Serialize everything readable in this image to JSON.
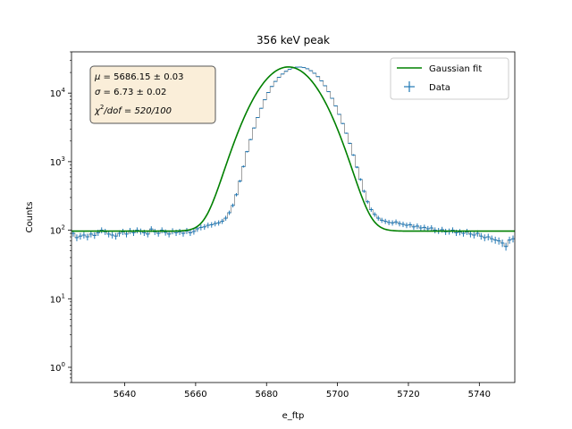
{
  "chart_data": {
    "type": "scatter",
    "title": "356 keV peak",
    "xlabel": "e_ftp",
    "ylabel": "Counts",
    "xlim": [
      5625,
      5750
    ],
    "ylim": [
      0.6,
      40000
    ],
    "yscale": "log",
    "xticks": [
      "5640",
      "5660",
      "5680",
      "5700",
      "5720",
      "5740"
    ],
    "yticks": [
      "10",
      "10",
      "10",
      "10",
      "10"
    ],
    "ytick_exponents": [
      "0",
      "1",
      "2",
      "3",
      "4"
    ],
    "grid": false,
    "legend_position": "top-right",
    "annotation": {
      "mu_symbol": "μ",
      "mu_text": " = 5686.15 ± 0.03",
      "sigma_symbol": "σ",
      "sigma_text": " = 6.73 ± 0.02",
      "chi_symbol": "χ",
      "chi_sup": "2",
      "chi_text": "/dof = 520/100"
    },
    "series": [
      {
        "name": "Gaussian fit",
        "kind": "line",
        "color": "#008000",
        "model": {
          "mu": 5686.15,
          "sigma": 6.73,
          "amplitude": 24000,
          "background": 97
        }
      },
      {
        "name": "Data",
        "kind": "errorbar",
        "color": "#1f77b4",
        "x_start": 5625.5,
        "x_step": 1,
        "values": [
          90,
          78,
          82,
          85,
          80,
          88,
          84,
          92,
          100,
          95,
          88,
          85,
          82,
          90,
          95,
          88,
          98,
          92,
          100,
          96,
          92,
          88,
          104,
          95,
          90,
          100,
          93,
          88,
          97,
          92,
          95,
          90,
          98,
          92,
          96,
          105,
          110,
          112,
          118,
          120,
          125,
          128,
          135,
          150,
          180,
          230,
          330,
          520,
          850,
          1400,
          2100,
          3100,
          4400,
          6000,
          8000,
          10200,
          12500,
          14800,
          17000,
          19000,
          20800,
          22200,
          23300,
          23900,
          24000,
          23600,
          22700,
          21200,
          19500,
          17400,
          15100,
          12800,
          10500,
          8400,
          6500,
          4900,
          3600,
          2600,
          1850,
          1250,
          830,
          550,
          370,
          260,
          200,
          170,
          150,
          140,
          135,
          130,
          128,
          132,
          125,
          122,
          118,
          120,
          112,
          115,
          108,
          110,
          105,
          108,
          100,
          98,
          102,
          95,
          96,
          100,
          92,
          94,
          90,
          95,
          88,
          85,
          90,
          82,
          78,
          80,
          75,
          72,
          70,
          65,
          58,
          72,
          75
        ]
      }
    ]
  }
}
